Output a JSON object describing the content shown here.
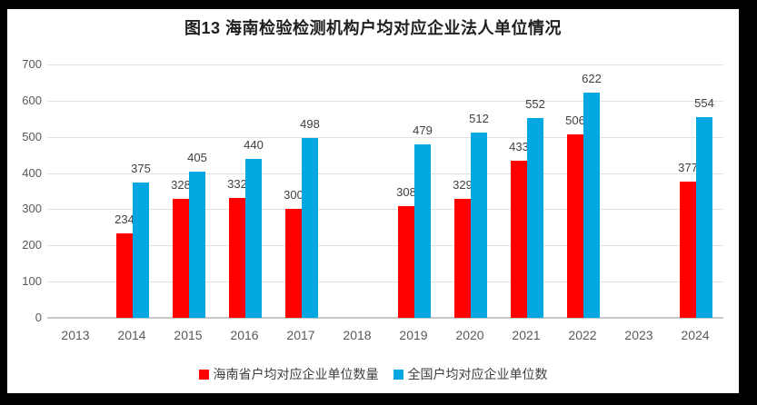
{
  "figure": {
    "title": "图13 海南检验检测机构户均对应企业法人单位情况"
  },
  "chart_data": {
    "type": "bar",
    "title": "图13 海南检验检测机构户均对应企业法人单位情况",
    "categories": [
      "2013",
      "2014",
      "2015",
      "2016",
      "2017",
      "2018",
      "2019",
      "2020",
      "2021",
      "2022",
      "2023",
      "2024"
    ],
    "series": [
      {
        "name": "海南省户均对应企业单位数量",
        "key": "hainan",
        "color": "#fe0000",
        "values": [
          null,
          234,
          328,
          332,
          300,
          null,
          308,
          329,
          433,
          506,
          null,
          377
        ]
      },
      {
        "name": "全国户均对应企业单位数",
        "key": "national",
        "color": "#00a7e1",
        "values": [
          null,
          375,
          405,
          440,
          498,
          null,
          479,
          512,
          552,
          622,
          null,
          554
        ]
      }
    ],
    "ylim": [
      0,
      700
    ],
    "yticks": [
      0,
      100,
      200,
      300,
      400,
      500,
      600,
      700
    ],
    "grid": true,
    "data_labels": true,
    "legend_position": "bottom"
  },
  "colors": {
    "frame": "#000000",
    "background": "#ffffff",
    "gridline": "#e2e2e2",
    "axis_line": "#c8c8c8",
    "tick_label": "#595959",
    "data_label": "#404040",
    "title": "#1f1f1f"
  }
}
